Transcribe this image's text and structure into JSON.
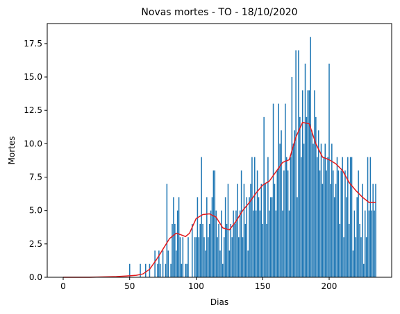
{
  "chart_data": {
    "type": "bar",
    "title": "Novas mortes - TO - 18/10/2020",
    "xlabel": "Dias",
    "ylabel": "Mortes",
    "xlim": [
      -12,
      247
    ],
    "ylim": [
      0,
      19
    ],
    "xticks": [
      0,
      50,
      100,
      150,
      200
    ],
    "xtick_labels": [
      "0",
      "50",
      "100",
      "150",
      "200"
    ],
    "yticks": [
      0,
      2.5,
      5,
      7.5,
      10,
      12.5,
      15,
      17.5
    ],
    "ytick_labels": [
      "0.0",
      "2.5",
      "5.0",
      "7.5",
      "10.0",
      "12.5",
      "15.0",
      "17.5"
    ],
    "grid": false,
    "colors": {
      "bars": "#1f77b4",
      "trend": "#e41a1c"
    },
    "series": [
      {
        "name": "",
        "type": "bar",
        "x_start": 0,
        "values": [
          0,
          0,
          0,
          0,
          0,
          0,
          0,
          0,
          0,
          0,
          0,
          0,
          0,
          0,
          0,
          0,
          0,
          0,
          0,
          0,
          0,
          0,
          0,
          0,
          0,
          0,
          0,
          0,
          0,
          0,
          0,
          0,
          0,
          0,
          0,
          0,
          0,
          0,
          0,
          0,
          0,
          0,
          0,
          0,
          0,
          0,
          0,
          0,
          0,
          0,
          1,
          0,
          0,
          0,
          0,
          0,
          0,
          0,
          1,
          0,
          0,
          0,
          1,
          0,
          0,
          1,
          0,
          0,
          0,
          2,
          0,
          1,
          2,
          1,
          0,
          2,
          0,
          1,
          7,
          2,
          0,
          1,
          4,
          6,
          4,
          2,
          5,
          6,
          3,
          1,
          3,
          0,
          1,
          1,
          3,
          0,
          0,
          4,
          0,
          3,
          3,
          6,
          3,
          4,
          9,
          4,
          3,
          2,
          6,
          3,
          4,
          5,
          6,
          8,
          8,
          5,
          3,
          4,
          2,
          5,
          1,
          3,
          6,
          4,
          7,
          2,
          4,
          3,
          5,
          4,
          5,
          7,
          3,
          5,
          8,
          3,
          7,
          4,
          6,
          2,
          6,
          7,
          9,
          5,
          9,
          5,
          8,
          6,
          5,
          7,
          4,
          12,
          7,
          4,
          9,
          5,
          6,
          6,
          13,
          7,
          5,
          8,
          13,
          10,
          11,
          5,
          8,
          13,
          9,
          8,
          5,
          9,
          15,
          10,
          11,
          17,
          6,
          17,
          12,
          9,
          14,
          10,
          16,
          12,
          14,
          14,
          18,
          11,
          10,
          14,
          12,
          9,
          11,
          8,
          10,
          7,
          9,
          10,
          8,
          9,
          16,
          7,
          10,
          8,
          6,
          7,
          9,
          8,
          4,
          8,
          9,
          3,
          8,
          6,
          9,
          4,
          9,
          9,
          2,
          5,
          3,
          6,
          8,
          4,
          3,
          7,
          1,
          5,
          3,
          9,
          5,
          9,
          5,
          7,
          5,
          7
        ]
      },
      {
        "name": "",
        "type": "line",
        "x": [
          0,
          20,
          40,
          48,
          55,
          60,
          65,
          70,
          75,
          80,
          85,
          88,
          92,
          95,
          100,
          105,
          110,
          115,
          120,
          125,
          130,
          135,
          140,
          145,
          150,
          155,
          160,
          165,
          170,
          175,
          180,
          185,
          190,
          195,
          200,
          205,
          210,
          215,
          220,
          225,
          230,
          235
        ],
        "values": [
          0,
          0,
          0.05,
          0.1,
          0.15,
          0.25,
          0.6,
          1.3,
          2.1,
          2.9,
          3.3,
          3.2,
          3.05,
          3.3,
          4.4,
          4.7,
          4.75,
          4.5,
          3.7,
          3.55,
          4.2,
          5.0,
          5.6,
          6.3,
          6.9,
          7.2,
          7.9,
          8.6,
          8.8,
          10.5,
          11.6,
          11.5,
          10.0,
          9.0,
          8.8,
          8.5,
          8.0,
          7.1,
          6.5,
          6.0,
          5.6,
          5.6
        ]
      }
    ]
  }
}
